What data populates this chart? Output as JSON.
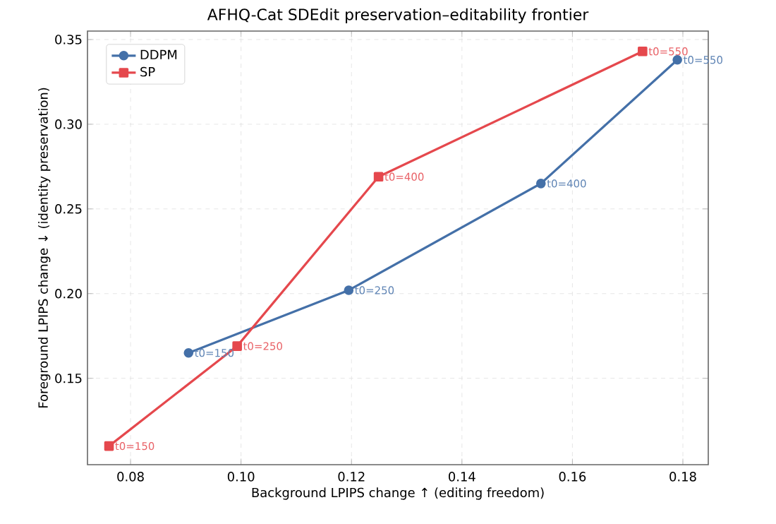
{
  "chart_data": {
    "type": "line",
    "title": "AFHQ-Cat SDEdit preservation–editability frontier",
    "xlabel": "Background LPIPS change ↑ (editing freedom)",
    "ylabel": "Foreground LPIPS change ↓ (identity preservation)",
    "series": [
      {
        "name": "DDPM",
        "color": "#4470a8",
        "marker": "circle",
        "x": [
          0.0905,
          0.1195,
          0.1543,
          0.179
        ],
        "values": [
          0.165,
          0.202,
          0.265,
          0.338
        ]
      },
      {
        "name": "SP",
        "color": "#e5484d",
        "marker": "square",
        "x": [
          0.0761,
          0.0993,
          0.1249,
          0.1727
        ],
        "values": [
          0.11,
          0.169,
          0.269,
          0.343
        ]
      }
    ],
    "annotations": [
      {
        "text": "t0=150",
        "x": 0.0905,
        "y": 0.165
      },
      {
        "text": "t0=250",
        "x": 0.1195,
        "y": 0.202
      },
      {
        "text": "t0=400",
        "x": 0.1543,
        "y": 0.265
      },
      {
        "text": "t0=550",
        "x": 0.179,
        "y": 0.338
      },
      {
        "text": "t0=150",
        "x": 0.0761,
        "y": 0.11
      },
      {
        "text": "t0=250",
        "x": 0.0993,
        "y": 0.169
      },
      {
        "text": "t0=400",
        "x": 0.1249,
        "y": 0.269
      },
      {
        "text": "t0=550",
        "x": 0.1727,
        "y": 0.343
      }
    ],
    "xlim": [
      0.0722,
      0.1846
    ],
    "ylim": [
      0.099,
      0.355
    ],
    "xticks": [
      {
        "value": 0.08,
        "label": "0.08"
      },
      {
        "value": 0.1,
        "label": "0.10"
      },
      {
        "value": 0.12,
        "label": "0.12"
      },
      {
        "value": 0.14,
        "label": "0.14"
      },
      {
        "value": 0.16,
        "label": "0.16"
      },
      {
        "value": 0.18,
        "label": "0.18"
      }
    ],
    "yticks": [
      {
        "value": 0.15,
        "label": "0.15"
      },
      {
        "value": 0.2,
        "label": "0.20"
      },
      {
        "value": 0.25,
        "label": "0.25"
      },
      {
        "value": 0.3,
        "label": "0.30"
      },
      {
        "value": 0.35,
        "label": "0.35"
      }
    ],
    "grid": true,
    "legend": "top left",
    "line_style": "solid"
  }
}
